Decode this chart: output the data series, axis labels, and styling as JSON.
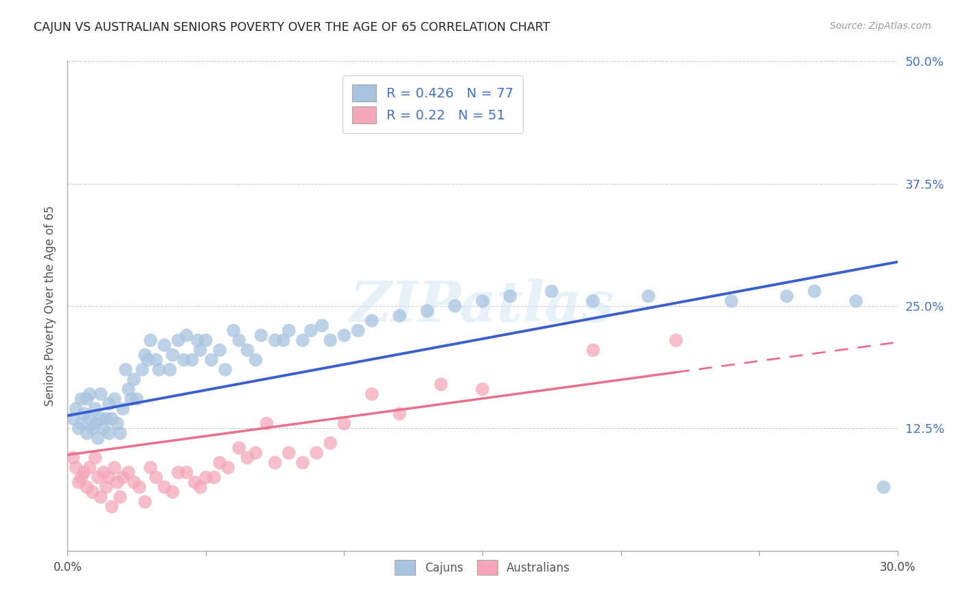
{
  "title": "CAJUN VS AUSTRALIAN SENIORS POVERTY OVER THE AGE OF 65 CORRELATION CHART",
  "source": "Source: ZipAtlas.com",
  "ylabel": "Seniors Poverty Over the Age of 65",
  "xlim": [
    0.0,
    0.3
  ],
  "ylim": [
    0.0,
    0.5
  ],
  "cajun_R": 0.426,
  "cajun_N": 77,
  "australian_R": 0.22,
  "australian_N": 51,
  "cajun_color": "#a8c4e0",
  "australian_color": "#f4a7b9",
  "cajun_line_color": "#3a5fcd",
  "australian_line_color": "#e8708a",
  "background_color": "#ffffff",
  "grid_color": "#cccccc",
  "title_color": "#222222",
  "watermark_text": "ZIPatlas",
  "cajun_trend_x0": 0.0,
  "cajun_trend_y0": 0.138,
  "cajun_trend_x1": 0.3,
  "cajun_trend_y1": 0.295,
  "aus_trend_x0": 0.0,
  "aus_trend_y0": 0.098,
  "aus_trend_x1": 0.3,
  "aus_trend_y1": 0.213,
  "cajun_x": [
    0.002,
    0.003,
    0.004,
    0.005,
    0.005,
    0.006,
    0.007,
    0.007,
    0.008,
    0.008,
    0.009,
    0.01,
    0.01,
    0.011,
    0.012,
    0.012,
    0.013,
    0.014,
    0.015,
    0.015,
    0.016,
    0.017,
    0.018,
    0.019,
    0.02,
    0.021,
    0.022,
    0.023,
    0.024,
    0.025,
    0.027,
    0.028,
    0.029,
    0.03,
    0.032,
    0.033,
    0.035,
    0.037,
    0.038,
    0.04,
    0.042,
    0.043,
    0.045,
    0.047,
    0.048,
    0.05,
    0.052,
    0.055,
    0.057,
    0.06,
    0.062,
    0.065,
    0.068,
    0.07,
    0.075,
    0.078,
    0.08,
    0.085,
    0.088,
    0.092,
    0.095,
    0.1,
    0.105,
    0.11,
    0.12,
    0.13,
    0.14,
    0.15,
    0.16,
    0.175,
    0.19,
    0.21,
    0.24,
    0.26,
    0.27,
    0.285,
    0.295
  ],
  "cajun_y": [
    0.135,
    0.145,
    0.125,
    0.13,
    0.155,
    0.14,
    0.12,
    0.155,
    0.135,
    0.16,
    0.125,
    0.145,
    0.13,
    0.115,
    0.135,
    0.16,
    0.125,
    0.135,
    0.12,
    0.15,
    0.135,
    0.155,
    0.13,
    0.12,
    0.145,
    0.185,
    0.165,
    0.155,
    0.175,
    0.155,
    0.185,
    0.2,
    0.195,
    0.215,
    0.195,
    0.185,
    0.21,
    0.185,
    0.2,
    0.215,
    0.195,
    0.22,
    0.195,
    0.215,
    0.205,
    0.215,
    0.195,
    0.205,
    0.185,
    0.225,
    0.215,
    0.205,
    0.195,
    0.22,
    0.215,
    0.215,
    0.225,
    0.215,
    0.225,
    0.23,
    0.215,
    0.22,
    0.225,
    0.235,
    0.24,
    0.245,
    0.25,
    0.255,
    0.26,
    0.265,
    0.255,
    0.26,
    0.255,
    0.26,
    0.265,
    0.255,
    0.065
  ],
  "aus_x": [
    0.002,
    0.003,
    0.004,
    0.005,
    0.006,
    0.007,
    0.008,
    0.009,
    0.01,
    0.011,
    0.012,
    0.013,
    0.014,
    0.015,
    0.016,
    0.017,
    0.018,
    0.019,
    0.02,
    0.022,
    0.024,
    0.026,
    0.028,
    0.03,
    0.032,
    0.035,
    0.038,
    0.04,
    0.043,
    0.046,
    0.048,
    0.05,
    0.053,
    0.055,
    0.058,
    0.062,
    0.065,
    0.068,
    0.072,
    0.075,
    0.08,
    0.085,
    0.09,
    0.095,
    0.1,
    0.11,
    0.12,
    0.135,
    0.15,
    0.19,
    0.22
  ],
  "aus_y": [
    0.095,
    0.085,
    0.07,
    0.075,
    0.08,
    0.065,
    0.085,
    0.06,
    0.095,
    0.075,
    0.055,
    0.08,
    0.065,
    0.075,
    0.045,
    0.085,
    0.07,
    0.055,
    0.075,
    0.08,
    0.07,
    0.065,
    0.05,
    0.085,
    0.075,
    0.065,
    0.06,
    0.08,
    0.08,
    0.07,
    0.065,
    0.075,
    0.075,
    0.09,
    0.085,
    0.105,
    0.095,
    0.1,
    0.13,
    0.09,
    0.1,
    0.09,
    0.1,
    0.11,
    0.13,
    0.16,
    0.14,
    0.17,
    0.165,
    0.205,
    0.215
  ]
}
